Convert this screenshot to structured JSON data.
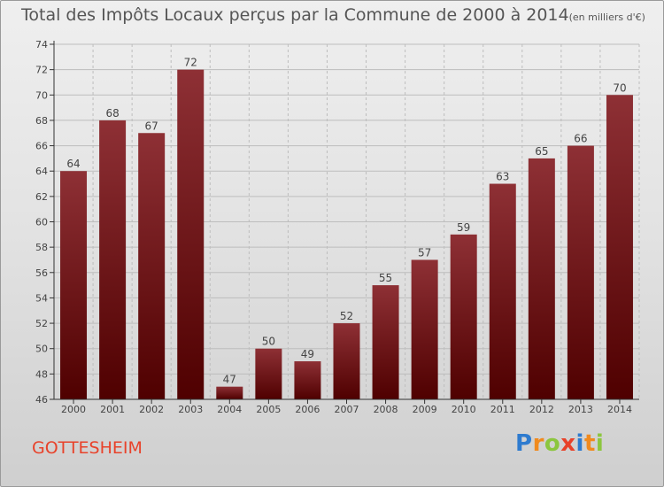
{
  "title": {
    "main": "Total des Impôts Locaux perçus par la Commune de 2000 à 2014",
    "unit": "(en milliers d'€)"
  },
  "commune": "GOTTESHEIM",
  "logo": {
    "letters": [
      "P",
      "r",
      "o",
      "x",
      "i",
      "t",
      "i"
    ],
    "colors": [
      "#2e7bcf",
      "#f08a1e",
      "#8cc63f",
      "#e8422a",
      "#2e7bcf",
      "#f08a1e",
      "#8cc63f"
    ]
  },
  "colors": {
    "bar_top": "#8e3035",
    "bar_bottom": "#4f0000",
    "grid": "#bdbdbd",
    "axis": "#333333"
  },
  "chart_data": {
    "type": "bar",
    "title": "Total des Impôts Locaux perçus par la Commune de 2000 à 2014",
    "categories": [
      "2000",
      "2001",
      "2002",
      "2003",
      "2004",
      "2005",
      "2006",
      "2007",
      "2008",
      "2009",
      "2010",
      "2011",
      "2012",
      "2013",
      "2014"
    ],
    "values": [
      64,
      68,
      67,
      72,
      47,
      50,
      49,
      52,
      55,
      57,
      59,
      63,
      65,
      66,
      70
    ],
    "ylim": [
      46,
      74
    ],
    "yticks": [
      46,
      48,
      50,
      52,
      54,
      56,
      58,
      60,
      62,
      64,
      66,
      68,
      70,
      72,
      74
    ],
    "xlabel": "",
    "ylabel": "",
    "grid": true,
    "data_labels": true
  }
}
